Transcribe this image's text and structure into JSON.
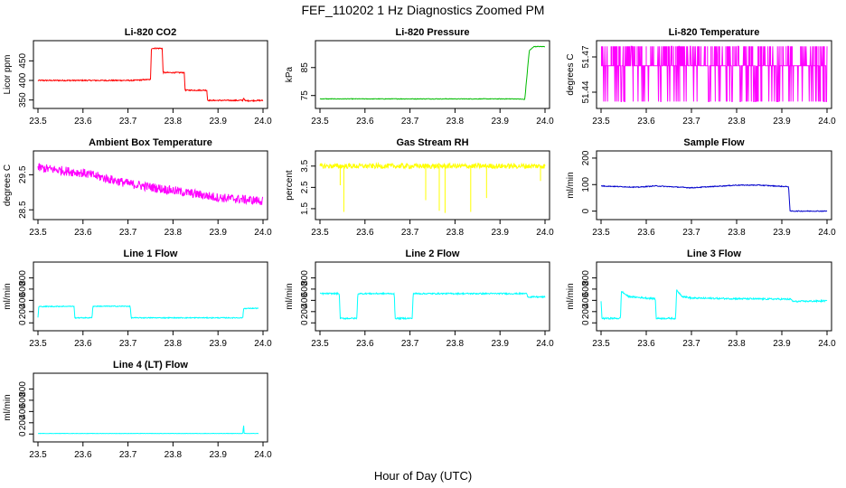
{
  "figure": {
    "title": "FEF_110202  1 Hz Diagnostics Zoomed PM",
    "xlabel": "Hour of Day (UTC)"
  },
  "chart_data": [
    {
      "type": "line",
      "title": "Li-820 CO2",
      "ylabel": "Licor ppm",
      "color": "#ff0000",
      "x_ticks": [
        "23.5",
        "23.6",
        "23.7",
        "23.8",
        "23.9",
        "24.0"
      ],
      "xlim": [
        23.5,
        24.0
      ],
      "y_ticks": [
        {
          "v": 350,
          "label": "350"
        },
        {
          "v": 400,
          "label": "400"
        },
        {
          "v": 450,
          "label": "450"
        }
      ],
      "ylim": [
        340,
        490
      ],
      "series": [
        {
          "name": "CO2",
          "points": [
            [
              23.5,
              400
            ],
            [
              23.71,
              400
            ],
            [
              23.74,
              402
            ],
            [
              23.75,
              402
            ],
            [
              23.752,
              482
            ],
            [
              23.776,
              482
            ],
            [
              23.778,
              420
            ],
            [
              23.825,
              420
            ],
            [
              23.827,
              375
            ],
            [
              23.875,
              375
            ],
            [
              23.877,
              349
            ],
            [
              23.955,
              349
            ],
            [
              23.957,
              356
            ],
            [
              23.96,
              348
            ],
            [
              24.0,
              349
            ]
          ],
          "noise": 1.5
        }
      ]
    },
    {
      "type": "line",
      "title": "Li-820 Pressure",
      "ylabel": "kPa",
      "color": "#00bb00",
      "x_ticks": [
        "23.5",
        "23.6",
        "23.7",
        "23.8",
        "23.9",
        "24.0"
      ],
      "xlim": [
        23.5,
        24.0
      ],
      "y_ticks": [
        {
          "v": 75,
          "label": "75"
        },
        {
          "v": 85,
          "label": "85"
        }
      ],
      "ylim": [
        72,
        93
      ],
      "series": [
        {
          "name": "Pressure",
          "points": [
            [
              23.5,
              73.8
            ],
            [
              23.94,
              73.8
            ],
            [
              23.955,
              73.6
            ],
            [
              23.965,
              91
            ],
            [
              23.975,
              92.5
            ],
            [
              24.0,
              92.5
            ]
          ],
          "noise": 0.1
        }
      ]
    },
    {
      "type": "line",
      "title": "Li-820 Temperature",
      "ylabel": "degrees C",
      "color": "#ff00ff",
      "x_ticks": [
        "23.5",
        "23.6",
        "23.7",
        "23.8",
        "23.9",
        "24.0"
      ],
      "xlim": [
        23.5,
        24.0
      ],
      "y_ticks": [
        {
          "v": 51.44,
          "label": "51.44"
        },
        {
          "v": 51.47,
          "label": "51.47"
        }
      ],
      "ylim": [
        51.43,
        51.48
      ],
      "series": [
        {
          "name": "Temperature",
          "points": [
            [
              23.5,
              51.4625
            ],
            [
              24.0,
              51.4625
            ]
          ],
          "noise": 0,
          "spikes": {
            "up": 51.479,
            "down": 51.432,
            "count": 160
          }
        }
      ]
    },
    {
      "type": "line",
      "title": "Ambient Box Temperature",
      "ylabel": "degrees C",
      "color": "#ff00ff",
      "x_ticks": [
        "23.5",
        "23.6",
        "23.7",
        "23.8",
        "23.9",
        "24.0"
      ],
      "xlim": [
        23.5,
        24.0
      ],
      "y_ticks": [
        {
          "v": 28.5,
          "label": "28.5"
        },
        {
          "v": 29.5,
          "label": "29.5"
        }
      ],
      "ylim": [
        28.35,
        30.05
      ],
      "series": [
        {
          "name": "Ambient",
          "points": [
            [
              23.5,
              29.7
            ],
            [
              23.6,
              29.55
            ],
            [
              23.7,
              29.25
            ],
            [
              23.8,
              29.05
            ],
            [
              23.9,
              28.85
            ],
            [
              24.0,
              28.75
            ]
          ],
          "noise": 0.13
        }
      ]
    },
    {
      "type": "line",
      "title": "Gas Stream RH",
      "ylabel": "percent",
      "color": "#ffff00",
      "x_ticks": [
        "23.5",
        "23.6",
        "23.7",
        "23.8",
        "23.9",
        "24.0"
      ],
      "xlim": [
        23.5,
        24.0
      ],
      "y_ticks": [
        {
          "v": 1.5,
          "label": "1.5"
        },
        {
          "v": 2.5,
          "label": "2.5"
        },
        {
          "v": 3.5,
          "label": "3.5"
        }
      ],
      "ylim": [
        1.2,
        4.0
      ],
      "series": [
        {
          "name": "RH",
          "points": [
            [
              23.5,
              3.5
            ],
            [
              24.0,
              3.5
            ]
          ],
          "noise": 0.12,
          "dips": [
            [
              23.545,
              2.6
            ],
            [
              23.553,
              1.35
            ],
            [
              23.735,
              1.9
            ],
            [
              23.765,
              1.4
            ],
            [
              23.778,
              1.3
            ],
            [
              23.835,
              1.35
            ],
            [
              23.87,
              2.0
            ],
            [
              23.99,
              2.8
            ]
          ]
        }
      ]
    },
    {
      "type": "line",
      "title": "Sample Flow",
      "ylabel": "ml/min",
      "color": "#0000cc",
      "x_ticks": [
        "23.5",
        "23.6",
        "23.7",
        "23.8",
        "23.9",
        "24.0"
      ],
      "xlim": [
        23.5,
        24.0
      ],
      "y_ticks": [
        {
          "v": 0,
          "label": "0"
        },
        {
          "v": 100,
          "label": "100"
        },
        {
          "v": 200,
          "label": "200"
        }
      ],
      "ylim": [
        -15,
        210
      ],
      "series": [
        {
          "name": "Sample",
          "points": [
            [
              23.5,
              95
            ],
            [
              23.58,
              90
            ],
            [
              23.62,
              95
            ],
            [
              23.7,
              88
            ],
            [
              23.8,
              98
            ],
            [
              23.85,
              98
            ],
            [
              23.915,
              92
            ],
            [
              23.918,
              0
            ],
            [
              24.0,
              0
            ]
          ],
          "noise": 1.5
        }
      ]
    },
    {
      "type": "line",
      "title": "Line 1 Flow",
      "ylabel": "ml/min",
      "color": "#00ffff",
      "x_ticks": [
        "23.5",
        "23.6",
        "23.7",
        "23.8",
        "23.9",
        "24.0"
      ],
      "xlim": [
        23.5,
        24.0
      ],
      "y_ticks": [
        {
          "v": 0,
          "label": "0"
        },
        {
          "v": 200,
          "label": "200"
        },
        {
          "v": 400,
          "label": "400"
        },
        {
          "v": 600,
          "label": "600"
        },
        {
          "v": 800,
          "label": "800"
        }
      ],
      "ylim": [
        -60,
        1000
      ],
      "series": [
        {
          "name": "Line 1",
          "points": [
            [
              23.5,
              100
            ],
            [
              23.502,
              290
            ],
            [
              23.58,
              295
            ],
            [
              23.582,
              90
            ],
            [
              23.62,
              90
            ],
            [
              23.622,
              295
            ],
            [
              23.705,
              295
            ],
            [
              23.707,
              90
            ],
            [
              23.955,
              90
            ],
            [
              23.957,
              255
            ],
            [
              23.99,
              260
            ]
          ],
          "noise": 8
        }
      ]
    },
    {
      "type": "line",
      "title": "Line 2 Flow",
      "ylabel": "ml/min",
      "color": "#00ffff",
      "x_ticks": [
        "23.5",
        "23.6",
        "23.7",
        "23.8",
        "23.9",
        "24.0"
      ],
      "xlim": [
        23.5,
        24.0
      ],
      "y_ticks": [
        {
          "v": 0,
          "label": "0"
        },
        {
          "v": 200,
          "label": "200"
        },
        {
          "v": 400,
          "label": "400"
        },
        {
          "v": 600,
          "label": "600"
        },
        {
          "v": 800,
          "label": "800"
        }
      ],
      "ylim": [
        -60,
        1000
      ],
      "series": [
        {
          "name": "Line 2",
          "points": [
            [
              23.5,
              520
            ],
            [
              23.543,
              520
            ],
            [
              23.545,
              80
            ],
            [
              23.582,
              80
            ],
            [
              23.584,
              520
            ],
            [
              23.665,
              520
            ],
            [
              23.667,
              80
            ],
            [
              23.705,
              80
            ],
            [
              23.707,
              520
            ],
            [
              23.96,
              520
            ],
            [
              23.962,
              460
            ],
            [
              24.0,
              460
            ]
          ],
          "noise": 12
        }
      ]
    },
    {
      "type": "line",
      "title": "Line 3 Flow",
      "ylabel": "ml/min",
      "color": "#00ffff",
      "x_ticks": [
        "23.5",
        "23.6",
        "23.7",
        "23.8",
        "23.9",
        "24.0"
      ],
      "xlim": [
        23.5,
        24.0
      ],
      "y_ticks": [
        {
          "v": 0,
          "label": "0"
        },
        {
          "v": 200,
          "label": "200"
        },
        {
          "v": 400,
          "label": "400"
        },
        {
          "v": 600,
          "label": "600"
        },
        {
          "v": 800,
          "label": "800"
        }
      ],
      "ylim": [
        -60,
        1000
      ],
      "series": [
        {
          "name": "Line 3",
          "points": [
            [
              23.5,
              380
            ],
            [
              23.502,
              80
            ],
            [
              23.543,
              80
            ],
            [
              23.545,
              560
            ],
            [
              23.56,
              470
            ],
            [
              23.585,
              450
            ],
            [
              23.62,
              430
            ],
            [
              23.622,
              80
            ],
            [
              23.665,
              80
            ],
            [
              23.667,
              580
            ],
            [
              23.68,
              470
            ],
            [
              23.7,
              440
            ],
            [
              23.8,
              430
            ],
            [
              23.92,
              420
            ],
            [
              23.925,
              380
            ],
            [
              24.0,
              390
            ]
          ],
          "noise": 14
        }
      ]
    },
    {
      "type": "line",
      "title": "Line 4 (LT) Flow",
      "ylabel": "ml/min",
      "color": "#00ffff",
      "x_ticks": [
        "23.5",
        "23.6",
        "23.7",
        "23.8",
        "23.9",
        "24.0"
      ],
      "xlim": [
        23.5,
        24.0
      ],
      "y_ticks": [
        {
          "v": 0,
          "label": "0"
        },
        {
          "v": 200,
          "label": "200"
        },
        {
          "v": 400,
          "label": "400"
        },
        {
          "v": 600,
          "label": "600"
        },
        {
          "v": 800,
          "label": "800"
        }
      ],
      "ylim": [
        -60,
        1000
      ],
      "series": [
        {
          "name": "Line 4",
          "points": [
            [
              23.5,
              10
            ],
            [
              23.955,
              10
            ],
            [
              23.957,
              150
            ],
            [
              23.958,
              10
            ],
            [
              23.99,
              10
            ]
          ],
          "noise": 3
        }
      ]
    }
  ]
}
